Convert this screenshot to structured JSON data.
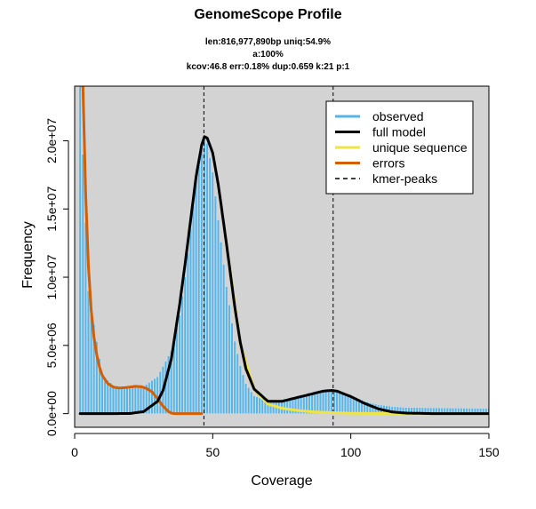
{
  "chart_data": {
    "type": "line",
    "title": "GenomeScope Profile",
    "subtitle_lines": [
      "len:816,977,890bp uniq:54.9%",
      "a:100%",
      "kcov:46.8 err:0.18%  dup:0.659  k:21 p:1"
    ],
    "xlabel": "Coverage",
    "ylabel": "Frequency",
    "xlim": [
      0,
      150
    ],
    "ylim": [
      -1000000,
      24000000
    ],
    "x_ticks": [
      {
        "value": 0,
        "label": "0"
      },
      {
        "value": 50,
        "label": "50"
      },
      {
        "value": 100,
        "label": "100"
      },
      {
        "value": 150,
        "label": "150"
      }
    ],
    "y_ticks": [
      {
        "value": 0,
        "label": "0.0e+00"
      },
      {
        "value": 5000000,
        "label": "5.0e+06"
      },
      {
        "value": 10000000,
        "label": "1.0e+07"
      },
      {
        "value": 15000000,
        "label": "1.5e+07"
      },
      {
        "value": 20000000,
        "label": "2.0e+07"
      }
    ],
    "grid": false,
    "plot_background": "#d3d3d3",
    "legend_position": "top-right",
    "legend": [
      {
        "label": "observed",
        "color": "#56B4E9",
        "style": "solid"
      },
      {
        "label": "full model",
        "color": "#000000",
        "style": "solid"
      },
      {
        "label": "unique sequence",
        "color": "#F0E442",
        "style": "solid"
      },
      {
        "label": "errors",
        "color": "#D55E00",
        "style": "solid"
      },
      {
        "label": "kmer-peaks",
        "color": "#000000",
        "style": "dashed"
      }
    ],
    "kmer_peaks": [
      46.8,
      93.6
    ],
    "series": [
      {
        "name": "observed",
        "style": "histogram",
        "color": "#56B4E9",
        "x": [
          2,
          5,
          10,
          15,
          20,
          25,
          30,
          35,
          38,
          40,
          42,
          44,
          46,
          47,
          48,
          50,
          52,
          55,
          58,
          60,
          62,
          65,
          70,
          75,
          80,
          85,
          90,
          93,
          95,
          100,
          105,
          110,
          115,
          120,
          130,
          140,
          150
        ],
        "y": [
          24000000,
          9000000,
          2800000,
          1900000,
          1950000,
          2000000,
          2700000,
          4600000,
          7200000,
          10000000,
          13500000,
          17000000,
          19500000,
          20100000,
          19800000,
          17700000,
          14200000,
          9300000,
          5300000,
          3500000,
          2200000,
          1300000,
          900000,
          1000000,
          1250000,
          1500000,
          1700000,
          1750000,
          1700000,
          1350000,
          900000,
          650000,
          520000,
          450000,
          420000,
          400000,
          380000
        ]
      },
      {
        "name": "full model",
        "style": "line",
        "color": "#000000",
        "x": [
          2,
          10,
          20,
          25,
          30,
          32,
          35,
          38,
          40,
          42,
          44,
          46,
          47,
          48,
          50,
          52,
          55,
          58,
          60,
          62,
          65,
          70,
          75,
          80,
          85,
          90,
          93,
          95,
          100,
          105,
          110,
          115,
          120,
          130,
          140,
          150
        ],
        "y": [
          0,
          0,
          10000,
          150000,
          900000,
          1700000,
          4000000,
          8000000,
          11000000,
          14200000,
          17400000,
          19700000,
          20300000,
          20200000,
          19100000,
          16800000,
          12400000,
          7800000,
          5200000,
          3300000,
          1800000,
          900000,
          900000,
          1150000,
          1400000,
          1650000,
          1700000,
          1650000,
          1250000,
          750000,
          350000,
          120000,
          40000,
          0,
          0,
          0
        ]
      },
      {
        "name": "unique sequence",
        "style": "line",
        "color": "#F0E442",
        "x": [
          55,
          60,
          65,
          70,
          75,
          80,
          85,
          90,
          95,
          100,
          110,
          120,
          130,
          150
        ],
        "y": [
          12400000,
          5100000,
          1800000,
          700000,
          400000,
          250000,
          150000,
          100000,
          60000,
          30000,
          10000,
          0,
          0,
          0
        ]
      },
      {
        "name": "errors",
        "style": "line",
        "color": "#D55E00",
        "x": [
          3,
          4,
          5,
          6,
          7,
          8,
          9,
          10,
          12,
          14,
          16,
          18,
          20,
          22,
          24,
          26,
          28,
          30,
          32,
          34,
          35,
          36,
          40,
          46
        ],
        "y": [
          24000000,
          16000000,
          10800000,
          7600000,
          5600000,
          4300000,
          3400000,
          2800000,
          2200000,
          1950000,
          1880000,
          1900000,
          1950000,
          2000000,
          1980000,
          1850000,
          1600000,
          1100000,
          550000,
          150000,
          40000,
          0,
          0,
          0
        ]
      }
    ]
  }
}
